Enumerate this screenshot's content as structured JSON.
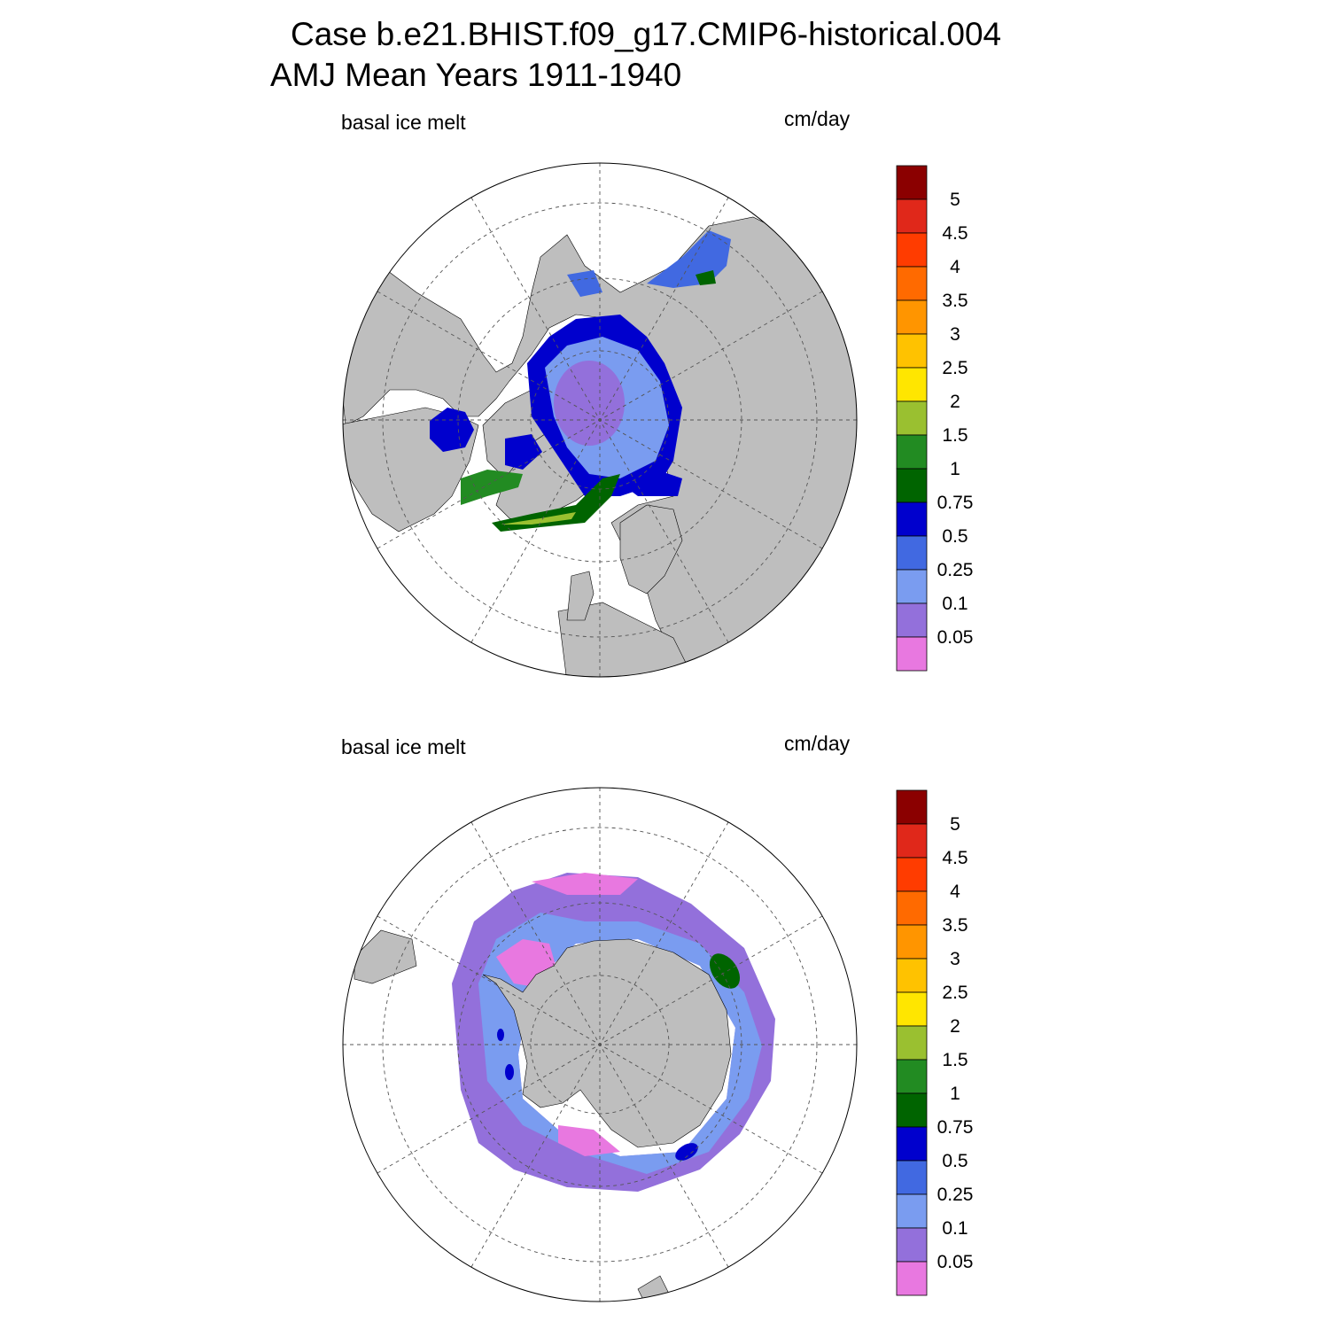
{
  "header": {
    "title_line1": "Case b.e21.BHIST.f09_g17.CMIP6-historical.004",
    "title_line2": "AMJ Mean   Years 1911-1940"
  },
  "panels": [
    {
      "id": "north",
      "left_label": "basal ice melt",
      "right_label": "cm/day"
    },
    {
      "id": "south",
      "left_label": "basal ice melt",
      "right_label": "cm/day"
    }
  ],
  "colorbar": {
    "labels": [
      "5",
      "4.5",
      "4",
      "3.5",
      "3",
      "2.5",
      "2",
      "1.5",
      "1",
      "0.75",
      "0.5",
      "0.25",
      "0.1",
      "0.05"
    ],
    "colors": [
      "#8b0000",
      "#e0281a",
      "#ff3c00",
      "#ff6a00",
      "#ff9500",
      "#ffc200",
      "#ffe600",
      "#9ac030",
      "#228b22",
      "#006400",
      "#0000cd",
      "#4169e1",
      "#7a9cf0",
      "#9370db",
      "#e878e0"
    ]
  },
  "colors": {
    "land": "#bebebe",
    "ocean_no_ice": "#ffffff",
    "grid_line": "#555555"
  }
}
